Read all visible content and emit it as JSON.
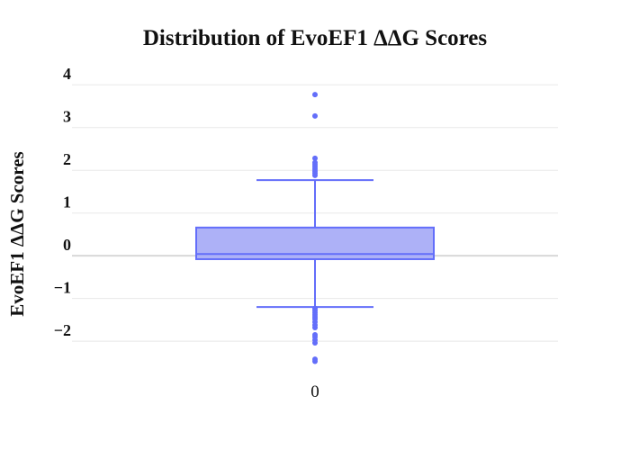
{
  "chart_data": {
    "type": "box",
    "title": "Distribution of EvoEF1 ΔΔG Scores",
    "ylabel": "EvoEF1 ΔΔG Scores",
    "xlabel": "",
    "categories": [
      "0"
    ],
    "ylim": [
      -2.65,
      4.3
    ],
    "yticks": [
      4,
      3,
      2,
      1,
      0,
      -1,
      -2
    ],
    "ytick_labels": [
      "4",
      "3",
      "2",
      "1",
      "0",
      "−1",
      "−2"
    ],
    "grid": true,
    "legend": "none",
    "box": {
      "category": "0",
      "q1": -0.08,
      "median": 0.04,
      "q3": 0.66,
      "whisker_low": -1.2,
      "whisker_high": 1.77
    },
    "outliers": [
      3.77,
      3.27,
      2.28,
      2.18,
      2.13,
      2.08,
      2.03,
      1.98,
      1.93,
      1.88,
      -1.23,
      -1.28,
      -1.33,
      -1.38,
      -1.43,
      -1.48,
      -1.55,
      -1.62,
      -1.68,
      -1.85,
      -1.9,
      -1.97,
      -2.04,
      -2.42,
      -2.47
    ],
    "colors": {
      "box_fill": "#adb1f7",
      "box_line": "#636efa",
      "points": "#636efa",
      "grid": "#e8e8e8",
      "zeroline": "#d8d8d8"
    }
  }
}
